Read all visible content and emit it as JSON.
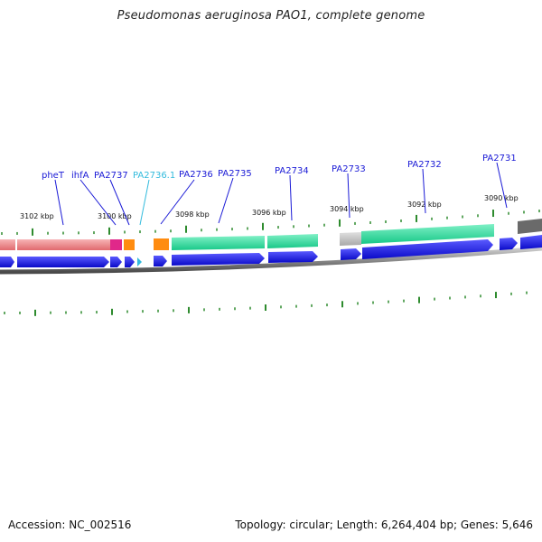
{
  "title": "Pseudomonas aeruginosa PAO1, complete genome",
  "footer": {
    "accession": "Accession: NC_002516",
    "summary": "Topology: circular; Length: 6,264,404 bp; Genes: 5,646"
  },
  "colors": {
    "gene_label": "#1a1ad6",
    "gene_label_highlight": "#33bbdd",
    "tick": "#2e8b2e",
    "cds_arrow": "#1a1ae6",
    "feature_red": "#e8767a",
    "feature_magenta": "#e0288a",
    "feature_orange": "#ff8c10",
    "feature_green": "#28dc9a",
    "feature_gray": "#bdbdbd",
    "feature_darkgray": "#707070",
    "backbone": "#8a8a8a"
  },
  "kbp_labels": [
    "3102 kbp",
    "3100 kbp",
    "3098 kbp",
    "3096 kbp",
    "3094 kbp",
    "3092 kbp",
    "3090 kbp"
  ],
  "genes": [
    {
      "name": "pheT",
      "highlight": false
    },
    {
      "name": "ihfA",
      "highlight": false
    },
    {
      "name": "PA2737",
      "highlight": false
    },
    {
      "name": "PA2736.1",
      "highlight": true
    },
    {
      "name": "PA2736",
      "highlight": false
    },
    {
      "name": "PA2735",
      "highlight": false
    },
    {
      "name": "PA2734",
      "highlight": false
    },
    {
      "name": "PA2733",
      "highlight": false
    },
    {
      "name": "PA2732",
      "highlight": false
    },
    {
      "name": "PA2731",
      "highlight": false
    }
  ]
}
